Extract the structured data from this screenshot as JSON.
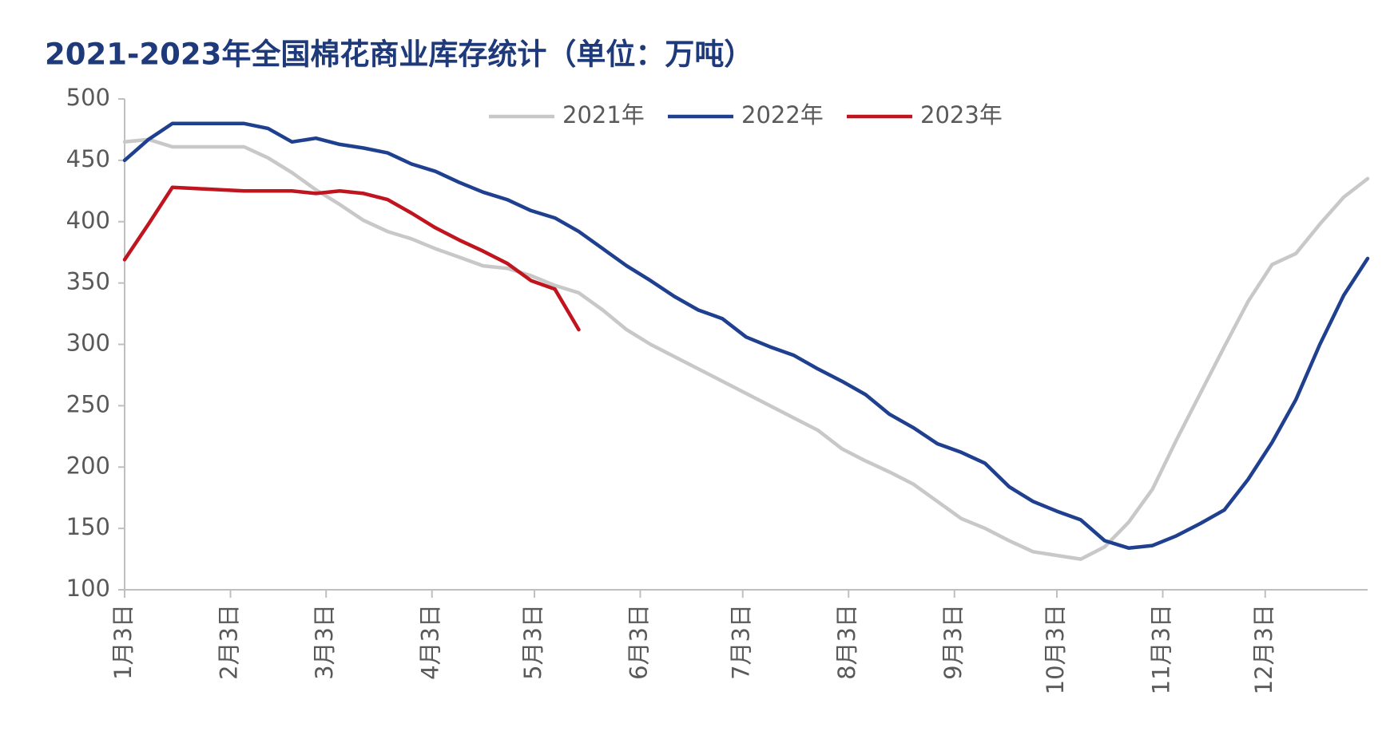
{
  "chart_data": {
    "type": "line",
    "title": "2021-2023年全国棉花商业库存统计（单位：万吨）",
    "x": [
      0,
      7,
      14,
      21,
      28,
      35,
      42,
      49,
      56,
      63,
      70,
      77,
      84,
      91,
      98,
      105,
      112,
      119,
      126,
      133,
      140,
      147,
      154,
      161,
      168,
      175,
      182,
      189,
      196,
      203,
      210,
      217,
      224,
      231,
      238,
      245,
      252,
      259,
      266,
      273,
      280,
      287,
      294,
      301,
      308,
      315,
      322,
      329,
      336,
      343,
      350,
      357,
      364
    ],
    "xlim": [
      0,
      364
    ],
    "xticks": [
      {
        "value": 0,
        "label": "1月3日"
      },
      {
        "value": 31,
        "label": "2月3日"
      },
      {
        "value": 59,
        "label": "3月3日"
      },
      {
        "value": 90,
        "label": "4月3日"
      },
      {
        "value": 120,
        "label": "5月3日"
      },
      {
        "value": 151,
        "label": "6月3日"
      },
      {
        "value": 181,
        "label": "7月3日"
      },
      {
        "value": 212,
        "label": "8月3日"
      },
      {
        "value": 243,
        "label": "9月3日"
      },
      {
        "value": 273,
        "label": "10月3日"
      },
      {
        "value": 304,
        "label": "11月3日"
      },
      {
        "value": 334,
        "label": "12月3日"
      }
    ],
    "ylim": [
      100,
      500
    ],
    "yticks": [
      100,
      150,
      200,
      250,
      300,
      350,
      400,
      450,
      500
    ],
    "legend": "top",
    "series": [
      {
        "name": "2021年",
        "color": "#c8c8c8",
        "values": [
          465,
          467,
          461,
          461,
          461,
          461,
          452,
          440,
          426,
          414,
          401,
          392,
          386,
          378,
          371,
          364,
          362,
          356,
          348,
          342,
          328,
          312,
          300,
          290,
          280,
          270,
          260,
          250,
          240,
          230,
          215,
          205,
          196,
          186,
          172,
          158,
          150,
          140,
          131,
          128,
          125,
          135,
          155,
          182,
          222,
          260,
          298,
          335,
          365,
          374,
          398,
          420,
          435
        ]
      },
      {
        "name": "2022年",
        "color": "#1f3f8f",
        "values": [
          450,
          467,
          480,
          480,
          480,
          480,
          476,
          465,
          468,
          463,
          460,
          456,
          447,
          441,
          432,
          424,
          418,
          409,
          403,
          392,
          378,
          364,
          352,
          339,
          328,
          321,
          306,
          298,
          291,
          280,
          270,
          259,
          243,
          232,
          219,
          212,
          203,
          184,
          172,
          164,
          157,
          140,
          134,
          136,
          144,
          154,
          165,
          190,
          220,
          255,
          300,
          340,
          370
        ]
      },
      {
        "name": "2023年",
        "color": "#c0141e",
        "values": [
          369,
          398,
          428,
          427,
          426,
          425,
          425,
          425,
          423,
          425,
          423,
          418,
          407,
          395,
          385,
          376,
          366,
          352,
          345,
          312,
          null,
          null,
          null,
          null,
          null,
          null,
          null,
          null,
          null,
          null,
          null,
          null,
          null,
          null,
          null,
          null,
          null,
          null,
          null,
          null,
          null,
          null,
          null,
          null,
          null,
          null,
          null,
          null,
          null,
          null,
          null,
          null,
          null
        ]
      }
    ]
  }
}
